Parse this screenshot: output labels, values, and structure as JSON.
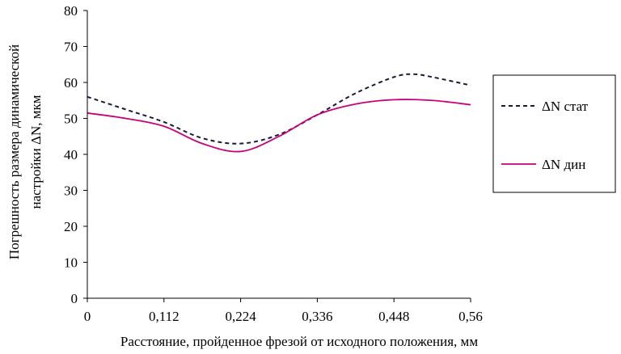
{
  "chart_data": {
    "type": "line",
    "xlabel": "Расстояние, пройденное фрезой от исходного положения, мм",
    "ylabel_lines": [
      "Погрешность размера динамической",
      "настройки ΔN, мкм"
    ],
    "x_ticks": [
      "0",
      "0,112",
      "0,224",
      "0,336",
      "0,448",
      "0,56"
    ],
    "y_ticks": [
      "0",
      "10",
      "20",
      "30",
      "40",
      "50",
      "60",
      "70",
      "80"
    ],
    "xlim": [
      0,
      0.56
    ],
    "ylim": [
      0,
      80
    ],
    "grid": false,
    "legend_position": "right",
    "series": [
      {
        "name": "ΔN стат",
        "style": "dashed",
        "color": "#1a1a3a",
        "x": [
          0,
          0.056,
          0.112,
          0.168,
          0.224,
          0.28,
          0.336,
          0.392,
          0.448,
          0.476,
          0.504,
          0.56
        ],
        "y": [
          56,
          52.5,
          49,
          44.5,
          43,
          45.5,
          51,
          57,
          61.5,
          62.3,
          61.5,
          59.2
        ]
      },
      {
        "name": "ΔN дин",
        "style": "solid",
        "color": "#c8007a",
        "x": [
          0,
          0.056,
          0.112,
          0.168,
          0.224,
          0.28,
          0.336,
          0.392,
          0.448,
          0.504,
          0.56
        ],
        "y": [
          51.5,
          50,
          47.8,
          43,
          40.8,
          45,
          51,
          54,
          55.2,
          55,
          53.8
        ]
      }
    ]
  }
}
